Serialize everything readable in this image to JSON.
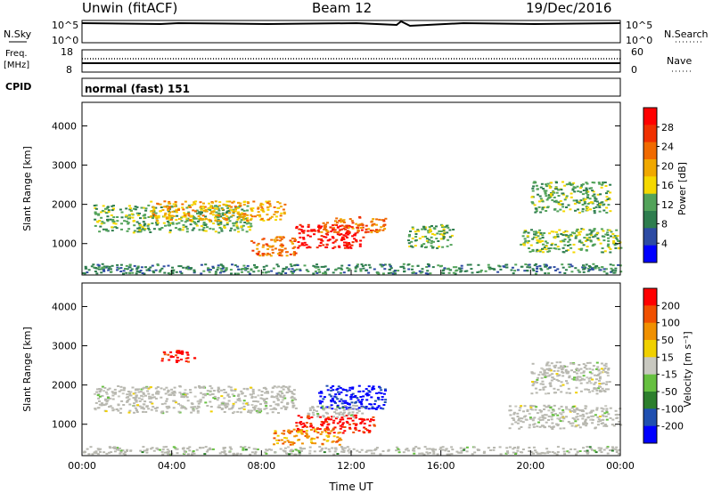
{
  "header": {
    "station": "Unwin (fitACF)",
    "beam": "Beam 12",
    "date": "19/Dec/2016"
  },
  "noise_panel": {
    "left_label": "N.Sky",
    "right_label": "N.Search",
    "tick_top": "10^5",
    "tick_bottom": "10^0"
  },
  "freq_panel": {
    "left_label_1": "Freq.",
    "left_label_2": "[MHz]",
    "left_ticks": [
      "18",
      "8"
    ],
    "right_label": "Nave",
    "right_ticks": [
      "60",
      "0"
    ]
  },
  "cpid_panel": {
    "label": "CPID",
    "value": "normal (fast) 151"
  },
  "colors": {
    "power_scale": [
      "#0000ff",
      "#2d4ba3",
      "#2e7d4e",
      "#53a35a",
      "#f5d800",
      "#f0a800",
      "#f06a00",
      "#f03000",
      "#ff0000"
    ],
    "velocity_scale": [
      "#0000ff",
      "#2050b0",
      "#2d7f2d",
      "#66c040",
      "#c8c8c0",
      "#f0d000",
      "#f09000",
      "#f05000",
      "#ff0000"
    ],
    "ground_scatter": "#b8b8b0"
  },
  "chart_data": [
    {
      "type": "heatmap",
      "name_panel": "power",
      "ylabel": "Slant Range [km]",
      "yticks": [
        "1000",
        "2000",
        "3000",
        "4000"
      ],
      "ylim": [
        200,
        4600
      ],
      "xlim": [
        "00:00",
        "24:00"
      ],
      "colorbar": {
        "label": "Power [dB]",
        "ticks": [
          "4",
          "8",
          "12",
          "16",
          "20",
          "24",
          "28"
        ]
      },
      "bands": [
        {
          "t0": 0.5,
          "t1": 7.5,
          "r0": 1300,
          "r1": 2000,
          "level": 3
        },
        {
          "t0": 3.0,
          "t1": 9.0,
          "r0": 1600,
          "r1": 2100,
          "level": 5
        },
        {
          "t0": 9.5,
          "t1": 12.5,
          "r0": 900,
          "r1": 1500,
          "level": 8
        },
        {
          "t0": 10.5,
          "t1": 13.5,
          "r0": 1300,
          "r1": 1700,
          "level": 6
        },
        {
          "t0": 7.5,
          "t1": 9.5,
          "r0": 700,
          "r1": 1200,
          "level": 6
        },
        {
          "t0": 14.5,
          "t1": 16.5,
          "r0": 900,
          "r1": 1500,
          "level": 3
        },
        {
          "t0": 19.5,
          "t1": 24.0,
          "r0": 800,
          "r1": 1400,
          "level": 3
        },
        {
          "t0": 20.0,
          "t1": 23.5,
          "r0": 1800,
          "r1": 2600,
          "level": 3
        },
        {
          "t0": 0.0,
          "t1": 24.0,
          "r0": 250,
          "r1": 500,
          "level": 2
        }
      ]
    },
    {
      "type": "heatmap",
      "name_panel": "velocity",
      "ylabel": "Slant Range [km]",
      "xlabel": "Time UT",
      "yticks": [
        "1000",
        "2000",
        "3000",
        "4000"
      ],
      "ylim": [
        200,
        4600
      ],
      "xlim": [
        "00:00",
        "24:00"
      ],
      "xticks": [
        "00:00",
        "04:00",
        "08:00",
        "12:00",
        "16:00",
        "20:00",
        "00:00"
      ],
      "colorbar": {
        "label": "Velocity [m s⁻¹]",
        "ticks": [
          "200",
          "100",
          "50",
          "15",
          "-15",
          "-50",
          "-100",
          "-200"
        ]
      },
      "bands": [
        {
          "t0": 0.5,
          "t1": 9.5,
          "r0": 1300,
          "r1": 2000,
          "level": 4
        },
        {
          "t0": 9.5,
          "t1": 13.0,
          "r0": 800,
          "r1": 1250,
          "level": 8
        },
        {
          "t0": 8.5,
          "t1": 11.5,
          "r0": 500,
          "r1": 900,
          "level": 6
        },
        {
          "t0": 10.5,
          "t1": 13.5,
          "r0": 1400,
          "r1": 2000,
          "level": 0
        },
        {
          "t0": 10.0,
          "t1": 12.5,
          "r0": 1200,
          "r1": 1500,
          "level": 3
        },
        {
          "t0": 3.5,
          "t1": 5.0,
          "r0": 2600,
          "r1": 2900,
          "level": 8
        },
        {
          "t0": 19.0,
          "t1": 24.0,
          "r0": 900,
          "r1": 1500,
          "level": 4
        },
        {
          "t0": 20.0,
          "t1": 23.5,
          "r0": 1800,
          "r1": 2600,
          "level": 4
        },
        {
          "t0": 0.0,
          "t1": 24.0,
          "r0": 250,
          "r1": 450,
          "level": 3
        }
      ]
    }
  ]
}
